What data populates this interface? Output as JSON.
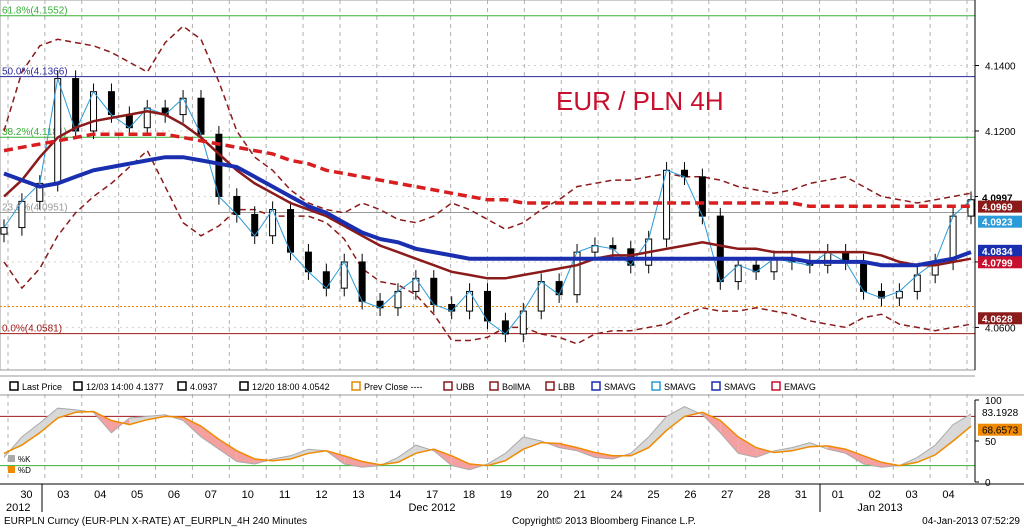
{
  "chart_data": {
    "type": "line",
    "title": "EUR / PLN 4H",
    "xlabel": "",
    "ylabel": "",
    "ylim": [
      4.047,
      4.16
    ],
    "y_ticks": [
      4.06,
      4.08,
      4.1,
      4.12,
      4.14
    ],
    "y_tick_labels": [
      "4.0600",
      "",
      "",
      "4.1200",
      "4.1400"
    ],
    "x_tick_labels": [
      "30",
      "03",
      "04",
      "05",
      "06",
      "07",
      "10",
      "11",
      "12",
      "13",
      "14",
      "17",
      "18",
      "19",
      "20",
      "21",
      "24",
      "25",
      "26",
      "27",
      "28",
      "31",
      "01",
      "02",
      "03",
      "04"
    ],
    "x_month_labels": [
      "2012",
      "Dec 2012",
      "Jan 2013"
    ],
    "fib_levels": [
      {
        "label": "61.8%(4.1552)",
        "value": 4.1552,
        "color": "#38b038"
      },
      {
        "label": "50.0%(4.1366)",
        "value": 4.1366,
        "color": "#2a2a9e"
      },
      {
        "label": "38.2%(4.1181)",
        "value": 4.1181,
        "color": "#38b038"
      },
      {
        "label": "23.6%(4.0951)",
        "value": 4.0951,
        "color": "#9a9a9a"
      },
      {
        "label": "0.0%(4.0581)",
        "value": 4.0581,
        "color": "#a01818"
      },
      {
        "label": "",
        "value": 4.0664,
        "color": "#f08a00"
      }
    ],
    "price_tags": [
      {
        "label": "4.0997",
        "value": 4.0997,
        "bg": "#ffffff",
        "fg": "#000000"
      },
      {
        "label": "4.0969",
        "value": 4.0969,
        "bg": "#8b1a1a",
        "fg": "#ffffff"
      },
      {
        "label": "4.0923",
        "value": 4.0923,
        "bg": "#2a9ad8",
        "fg": "#ffffff"
      },
      {
        "label": "4.0834",
        "value": 4.0834,
        "bg": "#1a2fb0",
        "fg": "#ffffff"
      },
      {
        "label": "4.0799",
        "value": 4.0799,
        "bg": "#c8102e",
        "fg": "#ffffff"
      },
      {
        "label": "4.0628",
        "value": 4.0628,
        "bg": "#8b1a1a",
        "fg": "#ffffff"
      }
    ],
    "series": [
      {
        "name": "Last Price",
        "close": [
          4.0905,
          4.0985,
          4.104,
          4.136,
          4.12,
          4.132,
          4.125,
          4.121,
          4.127,
          4.125,
          4.13,
          4.119,
          4.1,
          4.0945,
          4.088,
          4.096,
          4.083,
          4.077,
          4.072,
          4.08,
          4.068,
          4.066,
          4.071,
          4.075,
          4.067,
          4.065,
          4.071,
          4.062,
          4.058,
          4.065,
          4.074,
          4.07,
          4.083,
          4.085,
          4.084,
          4.079,
          4.087,
          4.108,
          4.106,
          4.094,
          4.074,
          4.079,
          4.077,
          4.081,
          4.08,
          4.079,
          4.083,
          4.08,
          4.071,
          4.069,
          4.071,
          4.076,
          4.08,
          4.094,
          4.099
        ]
      },
      {
        "name": "UBB",
        "values": [
          4.12,
          4.138,
          4.146,
          4.148,
          4.147,
          4.146,
          4.144,
          4.141,
          4.138,
          4.147,
          4.152,
          4.148,
          4.135,
          4.12,
          4.112,
          4.108,
          4.102,
          4.098,
          4.096,
          4.095,
          4.098,
          4.096,
          4.093,
          4.092,
          4.094,
          4.098,
          4.096,
          4.093,
          4.09,
          4.092,
          4.096,
          4.099,
          4.103,
          4.104,
          4.105,
          4.105,
          4.106,
          4.107,
          4.106,
          4.106,
          4.105,
          4.103,
          4.102,
          4.101,
          4.102,
          4.104,
          4.105,
          4.106,
          4.103,
          4.1,
          4.099,
          4.098,
          4.099,
          4.1,
          4.101
        ]
      },
      {
        "name": "BollMA",
        "values": [
          4.1,
          4.105,
          4.112,
          4.118,
          4.121,
          4.123,
          4.124,
          4.125,
          4.126,
          4.125,
          4.122,
          4.118,
          4.113,
          4.108,
          4.104,
          4.101,
          4.098,
          4.096,
          4.094,
          4.091,
          4.088,
          4.085,
          4.083,
          4.081,
          4.079,
          4.077,
          4.076,
          4.075,
          4.075,
          4.076,
          4.077,
          4.078,
          4.079,
          4.081,
          4.082,
          4.082,
          4.083,
          4.084,
          4.085,
          4.086,
          4.085,
          4.084,
          4.084,
          4.083,
          4.083,
          4.083,
          4.083,
          4.083,
          4.083,
          4.082,
          4.08,
          4.079,
          4.079,
          4.08,
          4.081
        ]
      },
      {
        "name": "LBB",
        "values": [
          4.08,
          4.072,
          4.078,
          4.088,
          4.095,
          4.1,
          4.104,
          4.109,
          4.114,
          4.103,
          4.092,
          4.088,
          4.091,
          4.096,
          4.096,
          4.094,
          4.094,
          4.094,
          4.092,
          4.087,
          4.078,
          4.074,
          4.073,
          4.07,
          4.064,
          4.056,
          4.056,
          4.057,
          4.06,
          4.06,
          4.058,
          4.057,
          4.055,
          4.058,
          4.059,
          4.059,
          4.06,
          4.061,
          4.064,
          4.066,
          4.065,
          4.065,
          4.066,
          4.065,
          4.064,
          4.062,
          4.061,
          4.06,
          4.063,
          4.064,
          4.061,
          4.06,
          4.059,
          4.06,
          4.061
        ]
      },
      {
        "name": "SMAVG",
        "values": [
          4.107,
          4.105,
          4.103,
          4.104,
          4.106,
          4.108,
          4.109,
          4.11,
          4.111,
          4.112,
          4.112,
          4.111,
          4.11,
          4.109,
          4.106,
          4.103,
          4.1,
          4.097,
          4.095,
          4.092,
          4.089,
          4.087,
          4.086,
          4.084,
          4.083,
          4.082,
          4.081,
          4.081,
          4.081,
          4.081,
          4.081,
          4.081,
          4.081,
          4.081,
          4.081,
          4.081,
          4.081,
          4.081,
          4.081,
          4.081,
          4.081,
          4.081,
          4.081,
          4.081,
          4.081,
          4.08,
          4.08,
          4.08,
          4.08,
          4.079,
          4.079,
          4.079,
          4.08,
          4.081,
          4.083
        ]
      },
      {
        "name": "EMAVG",
        "values": [
          4.114,
          4.115,
          4.116,
          4.117,
          4.118,
          4.119,
          4.119,
          4.119,
          4.119,
          4.119,
          4.118,
          4.117,
          4.116,
          4.115,
          4.114,
          4.113,
          4.111,
          4.11,
          4.108,
          4.107,
          4.106,
          4.105,
          4.104,
          4.103,
          4.102,
          4.101,
          4.1,
          4.099,
          4.099,
          4.098,
          4.098,
          4.098,
          4.098,
          4.098,
          4.098,
          4.098,
          4.098,
          4.098,
          4.098,
          4.098,
          4.098,
          4.098,
          4.098,
          4.098,
          4.098,
          4.097,
          4.097,
          4.097,
          4.097,
          4.097,
          4.097,
          4.097,
          4.097,
          4.097,
          4.097
        ]
      }
    ],
    "legend": [
      {
        "label": "Last Price",
        "color": "#000000"
      },
      {
        "label": "12/03 14:00 4.1377",
        "color": "#000000"
      },
      {
        "label": "4.0937",
        "color": "#000000"
      },
      {
        "label": "12/20 18:00 4.0542",
        "color": "#000000"
      },
      {
        "label": "Prev Close ----",
        "color": "#e08a00"
      },
      {
        "label": "UBB",
        "color": "#8b1a1a"
      },
      {
        "label": "BollMA",
        "color": "#8b1a1a"
      },
      {
        "label": "LBB",
        "color": "#8b1a1a"
      },
      {
        "label": "SMAVG",
        "color": "#1a2fb0"
      },
      {
        "label": "SMAVG",
        "color": "#2a9ad8"
      },
      {
        "label": "SMAVG",
        "color": "#1a2fb0"
      },
      {
        "label": "EMAVG",
        "color": "#c8102e"
      }
    ],
    "oscillator": {
      "ylim": [
        0,
        100
      ],
      "y_ticks": [
        0,
        50,
        100
      ],
      "y_tick_labels": [
        "0",
        "50",
        "100"
      ],
      "tags": [
        {
          "label": "83.1928",
          "value": 83.19,
          "bg": "#ffffff",
          "fg": "#000000"
        },
        {
          "label": "68.6573",
          "value": 68.66,
          "bg": "#f08a00",
          "fg": "#000000"
        }
      ],
      "legend": [
        {
          "label": "%K",
          "color": "#aaaaaa"
        },
        {
          "label": "%D",
          "color": "#f08a00"
        }
      ],
      "series": [
        {
          "name": "%K",
          "values": [
            30,
            55,
            72,
            90,
            88,
            85,
            60,
            78,
            80,
            82,
            75,
            55,
            40,
            25,
            22,
            28,
            32,
            40,
            38,
            22,
            18,
            20,
            30,
            45,
            38,
            20,
            15,
            22,
            35,
            55,
            50,
            42,
            38,
            30,
            28,
            35,
            55,
            80,
            92,
            82,
            60,
            35,
            30,
            38,
            42,
            48,
            40,
            35,
            22,
            18,
            20,
            30,
            45,
            70,
            83
          ]
        },
        {
          "name": "%D",
          "values": [
            35,
            45,
            60,
            78,
            85,
            86,
            75,
            70,
            76,
            80,
            79,
            68,
            52,
            38,
            28,
            26,
            28,
            35,
            38,
            32,
            25,
            21,
            24,
            35,
            40,
            32,
            22,
            20,
            26,
            40,
            48,
            47,
            42,
            36,
            32,
            32,
            42,
            63,
            80,
            85,
            75,
            55,
            42,
            36,
            38,
            43,
            44,
            40,
            32,
            24,
            20,
            24,
            33,
            50,
            68
          ]
        }
      ]
    },
    "footer": {
      "left": "EURPLN Curncy (EUR-PLN X-RATE) AT_EURPLN_4H  240 Minutes",
      "center": "Copyright© 2013 Bloomberg Finance L.P.",
      "right": "04-Jan-2013 07:52:29"
    }
  }
}
